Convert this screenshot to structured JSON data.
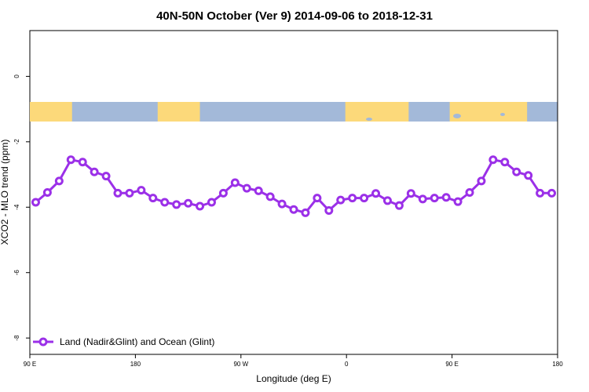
{
  "chart_data": {
    "type": "line",
    "title": "40N-50N October (Ver 9)   2014-09-06 to 2018-12-31",
    "xlabel": "Longitude (deg E)",
    "ylabel": "XCO2 - MLO trend (ppm)",
    "xlim": [
      90,
      540
    ],
    "ylim": [
      -8.5,
      1.4
    ],
    "x_ticks": [
      {
        "value": 90,
        "label": "90 E"
      },
      {
        "value": 180,
        "label": "180"
      },
      {
        "value": 270,
        "label": "90 W"
      },
      {
        "value": 360,
        "label": "0"
      },
      {
        "value": 450,
        "label": "90 E"
      },
      {
        "value": 540,
        "label": "180"
      }
    ],
    "y_ticks": [
      {
        "value": 0,
        "label": "0"
      },
      {
        "value": -2,
        "label": "-2"
      },
      {
        "value": -4,
        "label": "-4"
      },
      {
        "value": -6,
        "label": "-6"
      },
      {
        "value": -8,
        "label": "-8"
      }
    ],
    "series": [
      {
        "name": "Land (Nadir&Glint) and Ocean (Glint)",
        "color": "#9b30e8",
        "x": [
          95,
          105,
          115,
          125,
          135,
          145,
          155,
          165,
          175,
          185,
          195,
          205,
          215,
          225,
          235,
          245,
          255,
          265,
          275,
          285,
          295,
          305,
          315,
          325,
          335,
          345,
          355,
          365,
          375,
          385,
          395,
          405,
          415,
          425,
          435,
          445,
          455,
          465,
          475,
          485,
          495,
          505,
          515,
          525,
          535
        ],
        "y": [
          -3.85,
          -3.55,
          -3.2,
          -2.55,
          -2.62,
          -2.92,
          -3.05,
          -3.57,
          -3.57,
          -3.48,
          -3.72,
          -3.85,
          -3.92,
          -3.88,
          -3.97,
          -3.85,
          -3.57,
          -3.25,
          -3.42,
          -3.5,
          -3.68,
          -3.9,
          -4.07,
          -4.17,
          -3.72,
          -4.1,
          -3.78,
          -3.72,
          -3.72,
          -3.58,
          -3.8,
          -3.95,
          -3.58,
          -3.75,
          -3.72,
          -3.7,
          -3.83,
          -3.55,
          -3.2,
          -2.55,
          -2.62,
          -2.92,
          -3.03,
          -3.57,
          -3.57
        ]
      }
    ],
    "map_band": {
      "land_color": "#fcd97a",
      "ocean_color": "#a3b9d9"
    },
    "grid": false,
    "legend_position": "bottom-left"
  }
}
